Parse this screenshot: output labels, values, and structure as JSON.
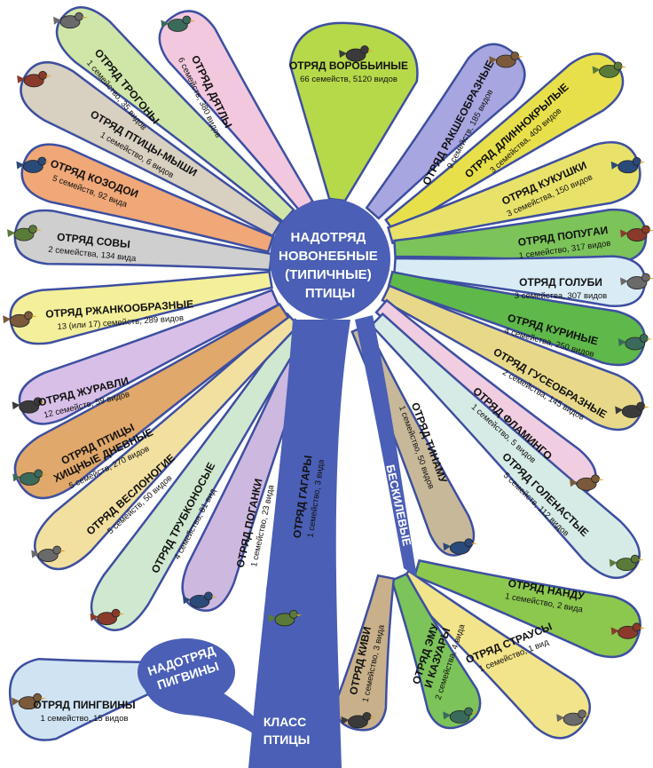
{
  "hub": {
    "lines": [
      "НАДОТРЯД",
      "НОВОНЕБНЫЕ",
      "(ТИПИЧНЫЕ)",
      "ПТИЦЫ"
    ],
    "color": "#4a5fb5"
  },
  "class_label": [
    "КЛАСС",
    "ПТИЦЫ"
  ],
  "penguin_superorder": [
    "НАДОТРЯД",
    "ПИГВИНЫ"
  ],
  "ratites_label": "БЕСКИЛЕВЫЕ",
  "orders": [
    {
      "id": "passeriformes",
      "title": "ОТРЯД ВОРОБЬИНЫЕ",
      "stats": "66 семейств, 5120 видов",
      "color": "#b6d94a"
    },
    {
      "id": "coraciiformes",
      "title": "ОТРЯД РАКШЕОБРАЗНЫЕ",
      "stats": "9 семейств, 185 видов",
      "color": "#a7a6e0"
    },
    {
      "id": "apodiformes",
      "title": "ОТРЯД ДЛИННОКРЫЛЫЕ",
      "stats": "3 семейства, 400 видов",
      "color": "#e8e04a"
    },
    {
      "id": "cuculiformes",
      "title": "ОТРЯД КУКУШКИ",
      "stats": "3 семейства, 150 видов",
      "color": "#e8e26a"
    },
    {
      "id": "psittaciformes",
      "title": "ОТРЯД ПОПУГАИ",
      "stats": "1 семейство, 317 видов",
      "color": "#7cc35a"
    },
    {
      "id": "columbiformes",
      "title": "ОТРЯД ГОЛУБИ",
      "stats": "3 семейства, 307 видов",
      "color": "#d9ecf5"
    },
    {
      "id": "galliformes",
      "title": "ОТРЯД КУРИНЫЕ",
      "stats": "4 семейства, 250 видов",
      "color": "#5fb84a"
    },
    {
      "id": "anseriformes",
      "title": "ОТРЯД ГУСЕОБРАЗНЫЕ",
      "stats": "2 семейства, 145 видов",
      "color": "#e8d98a"
    },
    {
      "id": "phoenicopteriformes",
      "title": "ОТРЯД ФЛАМИНГО",
      "stats": "1 семейство, 5 видов",
      "color": "#f0cde0"
    },
    {
      "id": "ciconiiformes",
      "title": "ОТРЯД ГОЛЕНАСТЫЕ",
      "stats": "5 семейств, 112 видов",
      "color": "#d6ebe6"
    },
    {
      "id": "tinamiformes",
      "title": "ОТРЯД ТИНАМУ",
      "stats": "1 семейство, 50 видов",
      "color": "#c8b89a"
    },
    {
      "id": "rheiformes",
      "title": "ОТРЯД НАНДУ",
      "stats": "1 семейство, 2 вида",
      "color": "#8cc84e"
    },
    {
      "id": "struthioniformes",
      "title": "ОТРЯД СТРАУСЫ",
      "stats": "1 семейство, 1 вид",
      "color": "#f2e48a"
    },
    {
      "id": "casuariiformes",
      "title": "ОТРЯД ЭМУ И КАЗУАРЫ",
      "stats": "2 семейства, 4 вида",
      "color": "#7cc35a"
    },
    {
      "id": "apterygiformes",
      "title": "ОТРЯД КИВИ",
      "stats": "1 семейство, 3 вида",
      "color": "#c8b08a"
    },
    {
      "id": "sphenisciformes",
      "title": "ОТРЯД ПИНГВИНЫ",
      "stats": "1 семейство, 15 видов",
      "color": "#cfe3f2"
    },
    {
      "id": "gaviiformes",
      "title": "ОТРЯД ГАГАРЫ",
      "stats": "1 семейство, 3 вида",
      "color": "#d9c8e8"
    },
    {
      "id": "podicipediformes",
      "title": "ОТРЯД ПОГАНКИ",
      "stats": "1 семейство, 23 вида",
      "color": "#cdb8e0"
    },
    {
      "id": "procellariiformes",
      "title": "ОТРЯД ТРУБКОНОСЫЕ",
      "stats": "4 семейства, 81 вид",
      "color": "#cfe8cf"
    },
    {
      "id": "pelecaniformes",
      "title": "ОТРЯД ВЕСЛОНОГИЕ",
      "stats": "5 семейств, 50 видов",
      "color": "#f2e0a0"
    },
    {
      "id": "falconiformes",
      "title": "ОТРЯД ПТИЦЫ ХИЩНЫЕ ДНЕВНЫЕ",
      "stats": "5 семейств, 270 видов",
      "color": "#e0a86a"
    },
    {
      "id": "gruiformes",
      "title": "ОТРЯД ЖУРАВЛИ",
      "stats": "12 семейств, 59 видов",
      "color": "#d8bfe8"
    },
    {
      "id": "charadriiformes",
      "title": "ОТРЯД РЖАНКООБРАЗНЫЕ",
      "stats": "13 (или 17) семейств, 289 видов",
      "color": "#f4ef9a"
    },
    {
      "id": "strigiformes",
      "title": "ОТРЯД СОВЫ",
      "stats": "2 семейства, 134 вида",
      "color": "#cfcfcf"
    },
    {
      "id": "caprimulgiformes",
      "title": "ОТРЯД КОЗОДОИ",
      "stats": "5 семейств, 92 вида",
      "color": "#f0a878"
    },
    {
      "id": "coliiformes",
      "title": "ОТРЯД ПТИЦЫ-МЫШИ",
      "stats": "1 семейство, 6 видов",
      "color": "#d8d0c0"
    },
    {
      "id": "trogoniformes",
      "title": "ОТРЯД ТРОГОНЫ",
      "stats": "1 семейство, 35 видов",
      "color": "#cfe6a8"
    },
    {
      "id": "piciformes",
      "title": "ОТРЯД ДЯТЛЫ",
      "stats": "6 семейств, 380 видов",
      "color": "#f2c8de"
    }
  ]
}
